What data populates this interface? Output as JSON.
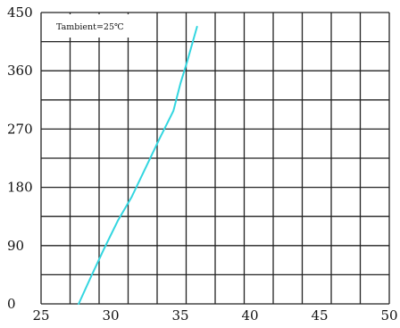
{
  "chart_data": {
    "type": "line",
    "title": "",
    "xlabel": "",
    "ylabel": "",
    "xlim": [
      25,
      50
    ],
    "ylim": [
      0,
      450
    ],
    "x_ticks": [
      "25",
      "30",
      "35",
      "40",
      "45",
      "50"
    ],
    "y_ticks": [
      "0",
      "90",
      "180",
      "270",
      "360",
      "450"
    ],
    "grid": true,
    "annotation": "Tambient=25℃",
    "series": [
      {
        "color": "#33d6e0",
        "x": [
          27.7,
          28.5,
          29.5,
          30.5,
          31.5,
          32.5,
          33.5,
          34.5,
          35.0,
          35.5,
          36.2
        ],
        "y": [
          0,
          38,
          84,
          128,
          165,
          210,
          255,
          298,
          340,
          375,
          428
        ]
      }
    ]
  },
  "colors": {
    "grid": "#222222",
    "background": "#ffffff"
  }
}
